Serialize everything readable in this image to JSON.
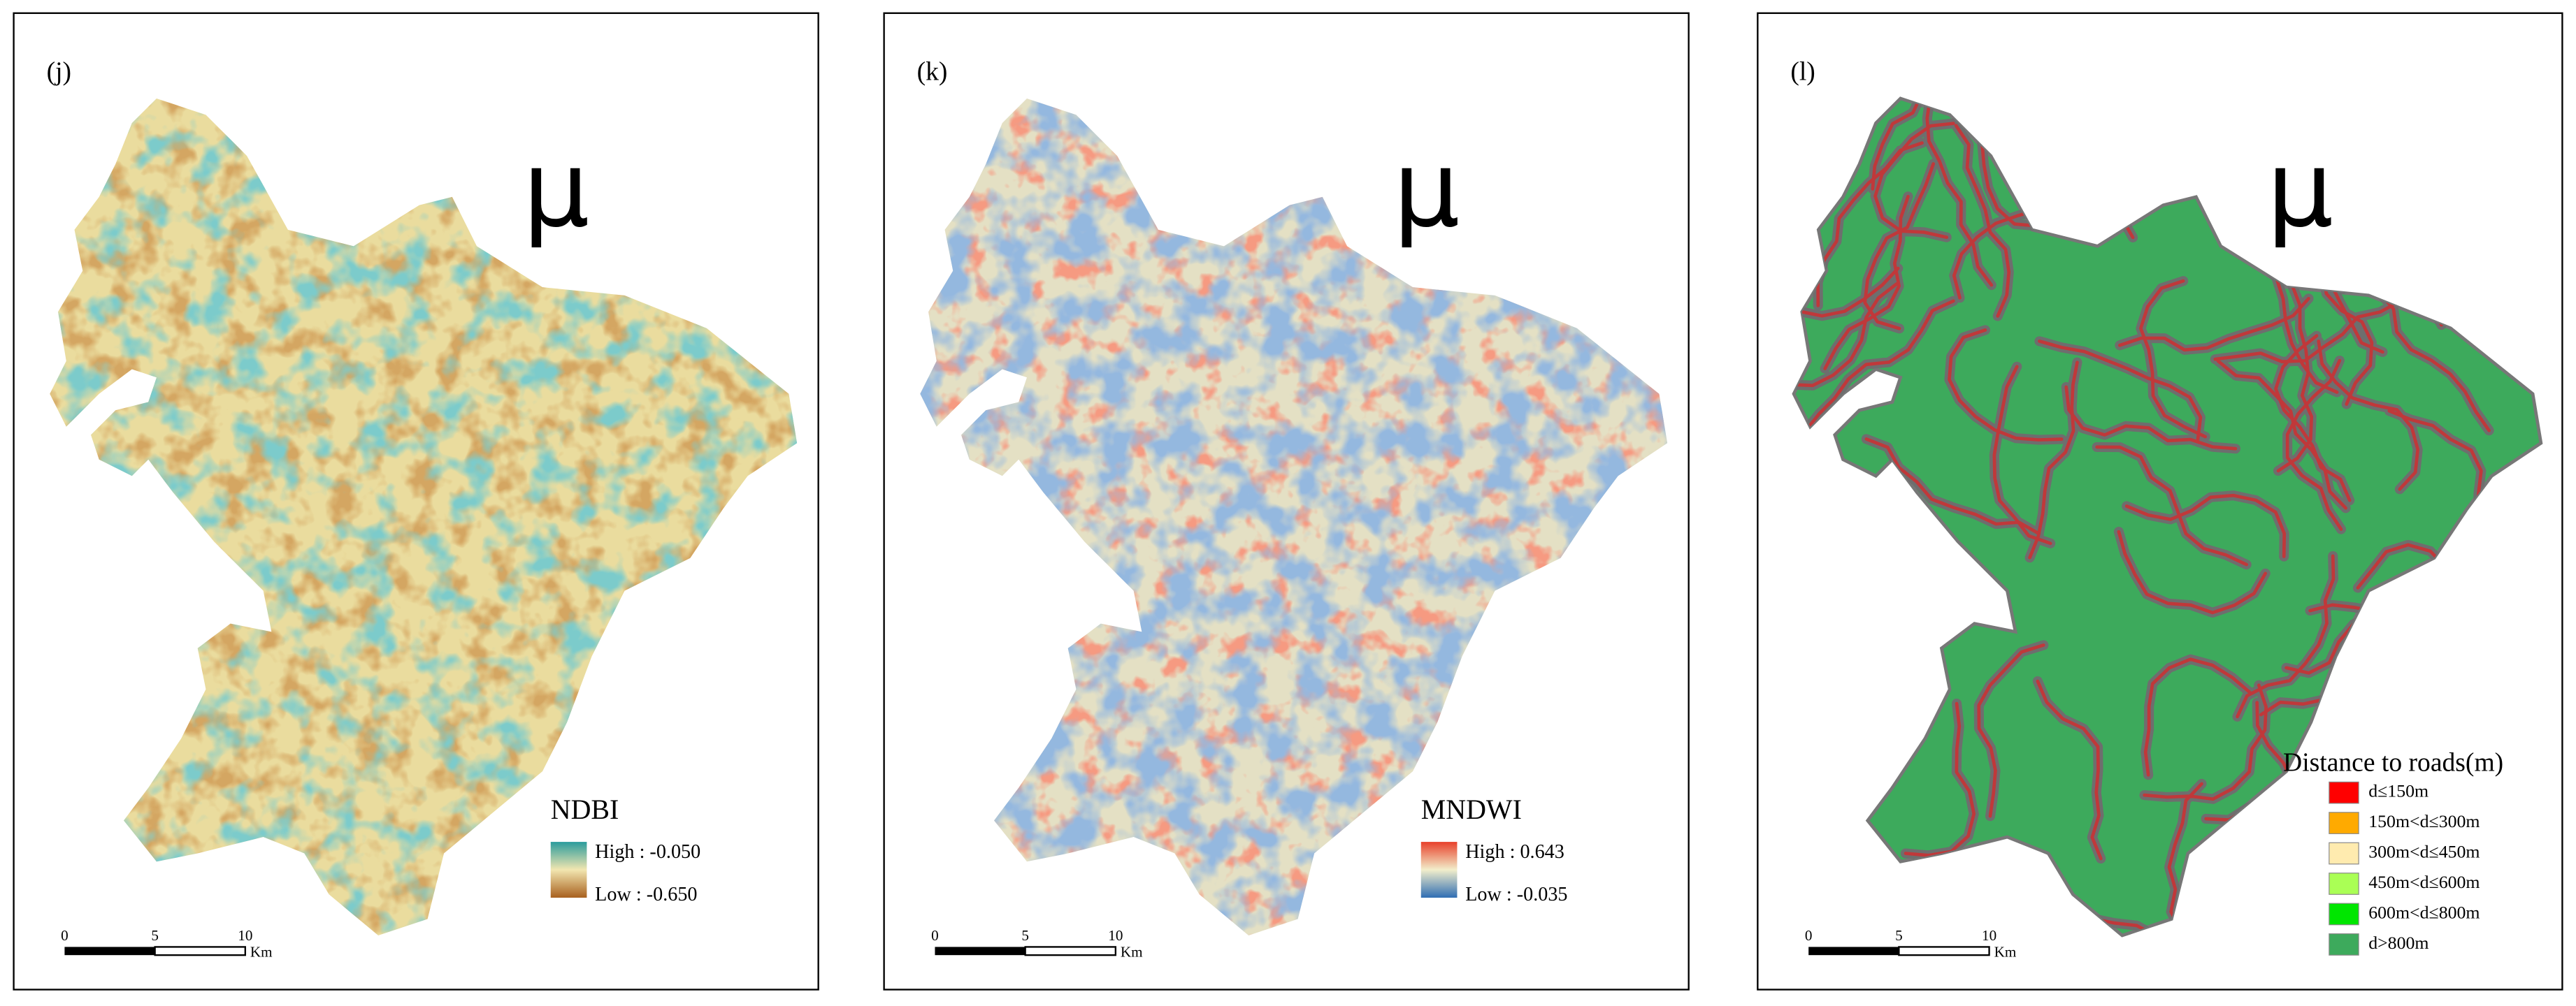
{
  "panels": [
    {
      "label": "(j)",
      "north": "μ",
      "legend": {
        "title": "NDBI",
        "high": "High : -0.050",
        "low": "Low : -0.650",
        "colors": [
          "#2a9c9c",
          "#f2e6b0",
          "#a8601e"
        ]
      },
      "scale": {
        "ticks": [
          "0",
          "5",
          "10"
        ],
        "unit": "Km"
      }
    },
    {
      "label": "(k)",
      "north": "μ",
      "legend": {
        "title": "MNDWI",
        "high": "High : 0.643",
        "low": "Low : -0.035",
        "colors": [
          "#e8402a",
          "#f2eecb",
          "#2f6db3"
        ]
      },
      "scale": {
        "ticks": [
          "0",
          "5",
          "10"
        ],
        "unit": "Km"
      }
    },
    {
      "label": "(l)",
      "north": "μ",
      "legend": {
        "title": "Distance to roads(m)",
        "items": [
          {
            "label": "d≤150m",
            "color": "#ff0000"
          },
          {
            "label": "150m<d≤300m",
            "color": "#ffaa00"
          },
          {
            "label": "300m<d≤450m",
            "color": "#ffebaf"
          },
          {
            "label": "450m<d≤600m",
            "color": "#aaff55"
          },
          {
            "label": "600m<d≤800m",
            "color": "#00e600"
          },
          {
            "label": "d>800m",
            "color": "#3daa5c"
          }
        ]
      },
      "scale": {
        "ticks": [
          "0",
          "5",
          "10"
        ],
        "unit": "Km"
      }
    }
  ]
}
